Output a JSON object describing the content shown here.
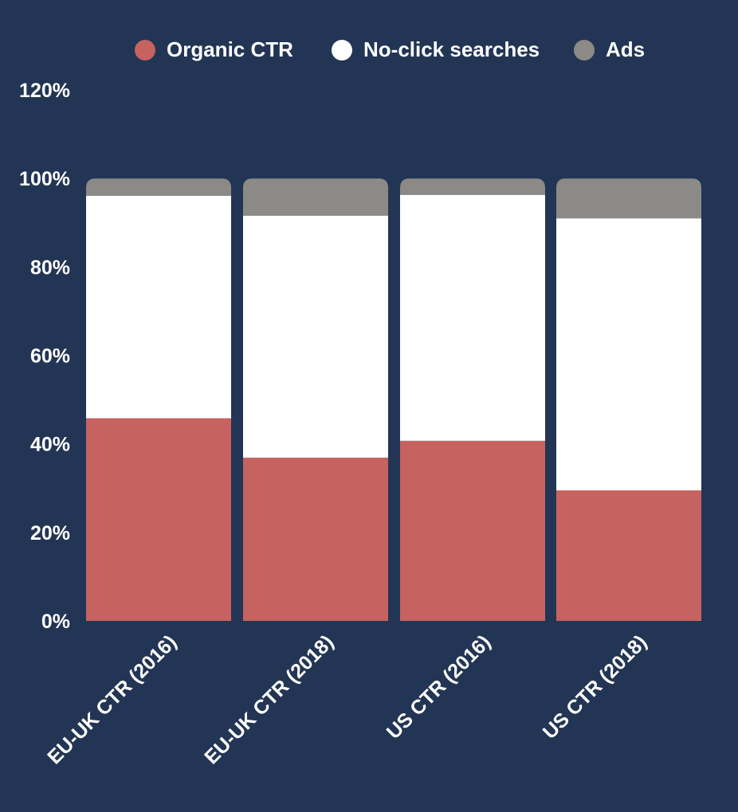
{
  "chart_data": {
    "type": "bar",
    "stacked": true,
    "title": "",
    "xlabel": "",
    "ylabel": "",
    "categories": [
      "EU-UK CTR (2016)",
      "EU-UK CTR (2018)",
      "US CTR (2016)",
      "US CTR (2018)"
    ],
    "series": [
      {
        "name": "Organic CTR",
        "color": "#c6625f",
        "values": [
          45.8,
          36.9,
          40.7,
          29.5
        ]
      },
      {
        "name": "No-click searches",
        "color": "#ffffff",
        "values": [
          50.3,
          54.7,
          55.6,
          61.5
        ]
      },
      {
        "name": "Ads",
        "color": "#8c8a87",
        "values": [
          3.9,
          8.4,
          3.7,
          9.0
        ]
      }
    ],
    "ylim": [
      0,
      120
    ],
    "yticks": [
      "0%",
      "20%",
      "40%",
      "60%",
      "80%",
      "100%",
      "120%"
    ],
    "ytick_values": [
      0,
      20,
      40,
      60,
      80,
      100,
      120
    ],
    "legend_position": "top",
    "grid": false,
    "background_color": "#233554",
    "text_color": "#ffffff"
  }
}
